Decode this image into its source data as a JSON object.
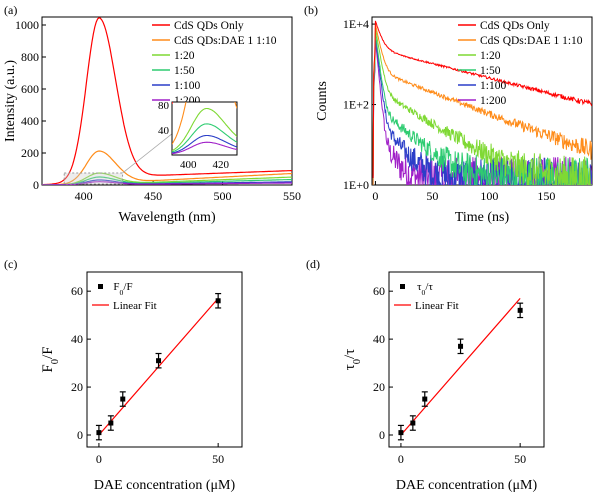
{
  "chart_data": [
    {
      "panel_label": "(a)",
      "type": "line",
      "xlabel": "Wavelength (nm)",
      "ylabel": "Intensity (a.u.)",
      "xlim": [
        370,
        550
      ],
      "ylim": [
        0,
        1050
      ],
      "xticks": [
        400,
        450,
        500,
        550
      ],
      "yticks": [
        0,
        200,
        400,
        600,
        800,
        1000
      ],
      "legend_position": "top-right",
      "peak_wavelength": 411,
      "series": [
        {
          "name": "CdS QDs Only",
          "color": "#ff0000",
          "peak": 1000,
          "tail": [
            55,
            100
          ]
        },
        {
          "name": "CdS QDs:DAE 1 1:10",
          "color": "#ff8c1a",
          "peak": 200,
          "tail": [
            15,
            80
          ]
        },
        {
          "name": "1:20",
          "color": "#7fd934",
          "peak": 68,
          "tail": [
            8,
            55
          ]
        },
        {
          "name": "1:50",
          "color": "#2ecc71",
          "peak": 45,
          "tail": [
            6,
            38
          ]
        },
        {
          "name": "1:100",
          "color": "#2c3fc8",
          "peak": 28,
          "tail": [
            4,
            22
          ]
        },
        {
          "name": "1:200",
          "color": "#a020c8",
          "peak": 18,
          "tail": [
            3,
            14
          ]
        }
      ],
      "inset": {
        "xlim": [
          390,
          430
        ],
        "ylim": [
          0,
          85
        ],
        "xticks": [
          400,
          420
        ],
        "yticks": [
          40,
          80
        ]
      }
    },
    {
      "panel_label": "(b)",
      "type": "line",
      "xlabel": "Time (ns)",
      "ylabel": "Counts",
      "yscale": "log",
      "xlim": [
        -3,
        190
      ],
      "ylim": [
        1,
        15000
      ],
      "xticks": [
        0,
        50,
        100,
        150
      ],
      "yticks": [
        1,
        100,
        10000
      ],
      "ytick_labels": [
        "1E+0",
        "1E+2",
        "1E+4"
      ],
      "legend_position": "top-right",
      "series": [
        {
          "name": "CdS QDs Only",
          "color": "#ff0000",
          "start": 12000
        },
        {
          "name": "CdS QDs:DAE 1 1:10",
          "color": "#ff8c1a",
          "start": 10000
        },
        {
          "name": "1:20",
          "color": "#7fd934",
          "start": 8000
        },
        {
          "name": "1:50",
          "color": "#2ecc71",
          "start": 6000
        },
        {
          "name": "1:100",
          "color": "#2c3fc8",
          "start": 5000
        },
        {
          "name": "1:200",
          "color": "#a020c8",
          "start": 4000
        }
      ]
    },
    {
      "panel_label": "(c)",
      "type": "scatter",
      "xlabel": "DAE concentration (μM)",
      "ylabel": "F0/F",
      "xlim": [
        -5,
        60
      ],
      "ylim": [
        -5,
        68
      ],
      "xticks": [
        0,
        50
      ],
      "yticks": [
        0,
        20,
        40,
        60
      ],
      "legend_position": "top-left",
      "legend": [
        "F0/F",
        "Linear Fit"
      ],
      "points": [
        {
          "x": 0,
          "y": 1,
          "err": 3
        },
        {
          "x": 5,
          "y": 5,
          "err": 3
        },
        {
          "x": 10,
          "y": 15,
          "err": 3
        },
        {
          "x": 25,
          "y": 31,
          "err": 3
        },
        {
          "x": 50,
          "y": 56,
          "err": 3
        }
      ],
      "fit": {
        "x": [
          0,
          50
        ],
        "y": [
          0,
          57
        ],
        "color": "#ff0000"
      }
    },
    {
      "panel_label": "(d)",
      "type": "scatter",
      "xlabel": "DAE concentration (μM)",
      "ylabel": "τ0/τ",
      "xlim": [
        -5,
        60
      ],
      "ylim": [
        -5,
        68
      ],
      "xticks": [
        0,
        50
      ],
      "yticks": [
        0,
        20,
        40,
        60
      ],
      "legend_position": "top-left",
      "legend": [
        "τ0/τ",
        "Linear Fit"
      ],
      "points": [
        {
          "x": 0,
          "y": 1,
          "err": 3
        },
        {
          "x": 5,
          "y": 5,
          "err": 3
        },
        {
          "x": 10,
          "y": 15,
          "err": 3
        },
        {
          "x": 25,
          "y": 37,
          "err": 3
        },
        {
          "x": 50,
          "y": 52,
          "err": 3
        }
      ],
      "fit": {
        "x": [
          0,
          50
        ],
        "y": [
          0,
          57
        ],
        "color": "#ff0000"
      }
    }
  ]
}
